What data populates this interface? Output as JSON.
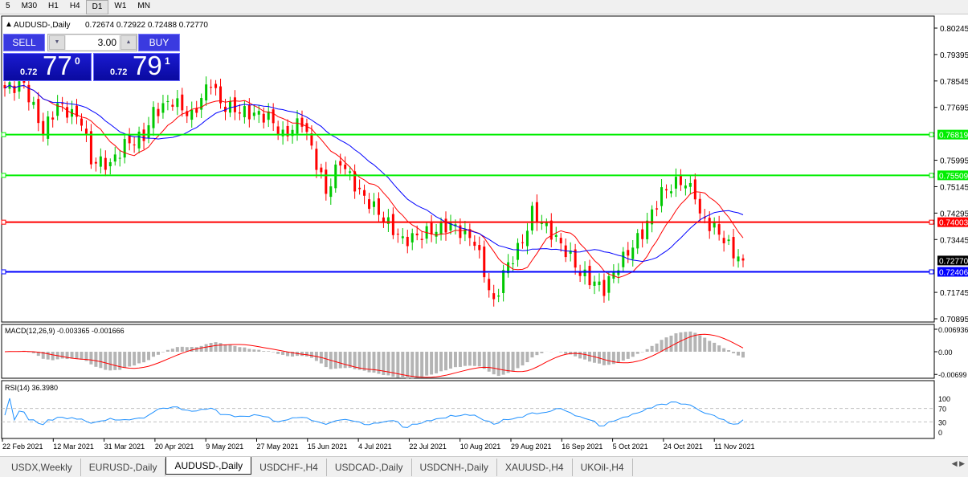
{
  "toolbar": {
    "timeframes": [
      "5",
      "M30",
      "H1",
      "H4",
      "D1",
      "W1",
      "MN"
    ],
    "active": "D1"
  },
  "chart": {
    "symbol_line": "AUDUSD-,Daily",
    "ohlc": "0.72674 0.72922 0.72488 0.72770",
    "price_axis": [
      "0.80245",
      "0.79395",
      "0.78545",
      "0.77695",
      "0.75995",
      "0.75145",
      "0.74295",
      "0.73445",
      "0.71745",
      "0.70895"
    ],
    "price_range": [
      0.70895,
      0.80245
    ],
    "levels": [
      {
        "price": 0.76819,
        "label": "0.76819",
        "color": "#00ee00"
      },
      {
        "price": 0.75509,
        "label": "0.75509",
        "color": "#00ee00"
      },
      {
        "price": 0.74003,
        "label": "0.74003",
        "color": "#ff0000"
      },
      {
        "price": 0.72406,
        "label": "0.72406",
        "color": "#0000ff"
      }
    ],
    "current_price": {
      "price": 0.7277,
      "label": "0.72770"
    },
    "bull_color": "#00c800",
    "bear_color": "#ff0000",
    "ma_fast_color": "#ff0000",
    "ma_slow_color": "#0000ff",
    "price_waypoints": [
      [
        0,
        0.7831
      ],
      [
        4,
        0.7844
      ],
      [
        8,
        0.7689
      ],
      [
        11,
        0.7779
      ],
      [
        16,
        0.7728
      ],
      [
        18,
        0.7598
      ],
      [
        22,
        0.7586
      ],
      [
        25,
        0.765
      ],
      [
        29,
        0.7676
      ],
      [
        31,
        0.7753
      ],
      [
        35,
        0.7792
      ],
      [
        39,
        0.774
      ],
      [
        43,
        0.7857
      ],
      [
        45,
        0.7779
      ],
      [
        50,
        0.7753
      ],
      [
        55,
        0.774
      ],
      [
        58,
        0.7676
      ],
      [
        62,
        0.7728
      ],
      [
        64,
        0.7637
      ],
      [
        67,
        0.7495
      ],
      [
        70,
        0.7598
      ],
      [
        74,
        0.7495
      ],
      [
        78,
        0.7431
      ],
      [
        83,
        0.734
      ],
      [
        88,
        0.7366
      ],
      [
        93,
        0.7392
      ],
      [
        98,
        0.734
      ],
      [
        100,
        0.7237
      ],
      [
        102,
        0.7134
      ],
      [
        104,
        0.7237
      ],
      [
        108,
        0.734
      ],
      [
        110,
        0.7431
      ],
      [
        114,
        0.7366
      ],
      [
        118,
        0.7288
      ],
      [
        120,
        0.7237
      ],
      [
        125,
        0.7185
      ],
      [
        128,
        0.7263
      ],
      [
        133,
        0.7366
      ],
      [
        137,
        0.7495
      ],
      [
        141,
        0.7534
      ],
      [
        144,
        0.7495
      ],
      [
        145,
        0.7418
      ],
      [
        149,
        0.7366
      ],
      [
        152,
        0.7301
      ],
      [
        154,
        0.7277
      ]
    ],
    "dates": [
      "22 Feb 2021",
      "12 Mar 2021",
      "31 Mar 2021",
      "20 Apr 2021",
      "9 May 2021",
      "27 May 2021",
      "15 Jun 2021",
      "4 Jul 2021",
      "22 Jul 2021",
      "10 Aug 2021",
      "29 Aug 2021",
      "16 Sep 2021",
      "5 Oct 2021",
      "24 Oct 2021",
      "11 Nov 2021"
    ]
  },
  "trade_panel": {
    "sell_label": "SELL",
    "buy_label": "BUY",
    "lot": "3.00",
    "sell_prefix": "0.72",
    "sell_big": "77",
    "sell_sup": "0",
    "buy_prefix": "0.72",
    "buy_big": "79",
    "buy_sup": "1"
  },
  "macd": {
    "label": "MACD(12,26,9) -0.003365 -0.001666",
    "axis": [
      "0.006936",
      "0.00",
      "-0.00699"
    ]
  },
  "rsi": {
    "label": "RSI(14) 36.3980",
    "axis": [
      "100",
      "70",
      "30",
      "0"
    ]
  },
  "tabs": [
    "USDX,Weekly",
    "EURUSD-,Daily",
    "AUDUSD-,Daily",
    "USDCHF-,H4",
    "USDCAD-,Daily",
    "USDCNH-,Daily",
    "XAUUSD-,H4",
    "UKOil-,H4"
  ],
  "active_tab": "AUDUSD-,Daily"
}
